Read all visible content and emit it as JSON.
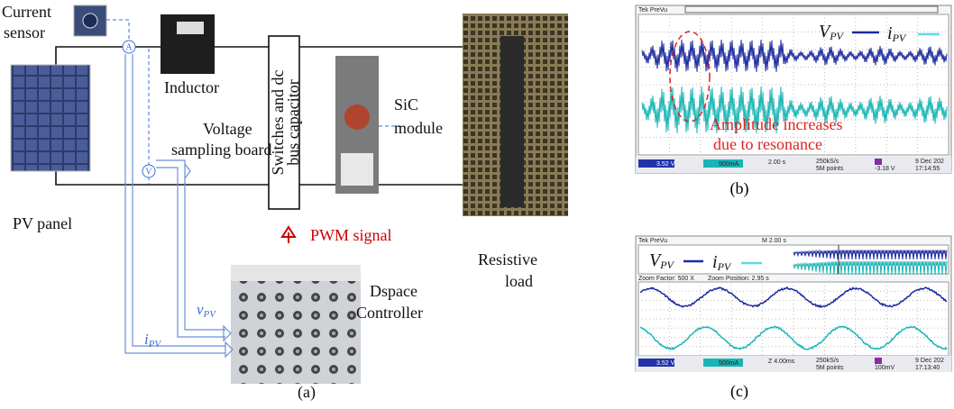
{
  "panel_a": {
    "current_sensor": [
      "Current",
      "sensor"
    ],
    "ammeter": "A",
    "voltmeter": "V",
    "inductor": "Inductor",
    "voltage_sampling_board": [
      "Voltage",
      "sampling board"
    ],
    "switches": [
      "Switches and dc",
      "bus capacitor"
    ],
    "sic_module": [
      "SiC",
      "module"
    ],
    "pv_panel": "PV panel",
    "pwm_signal": "PWM signal",
    "resistive_load": [
      "Resistive",
      "load"
    ],
    "dspace_controller": [
      "Dspace",
      "Controller"
    ],
    "v_pv": {
      "main": "v",
      "sub": "PV"
    },
    "i_pv": {
      "main": "i",
      "sub": "PV"
    },
    "caption": "(a)"
  },
  "panel_b": {
    "header": "Tek PreVu",
    "legend_v": {
      "main": "V",
      "sub": "PV"
    },
    "legend_i": {
      "main": "i",
      "sub": "PV"
    },
    "annotation": [
      "Amplitude increases",
      "due to resonance"
    ],
    "status": {
      "ch1": "3.52 V",
      "ch2": "500mA",
      "timebase": "2.00 s",
      "rate": "250kS/s",
      "points": "5M points",
      "trigger": "-3.18 V",
      "date": "9 Dec 202",
      "time": "17:14:55"
    },
    "caption": "(b)"
  },
  "panel_c": {
    "header": "Tek PreVu",
    "overview": "M 2.00 s",
    "legend_v": {
      "main": "V",
      "sub": "PV"
    },
    "legend_i": {
      "main": "i",
      "sub": "PV"
    },
    "zoom_factor": "Zoom Factor: 500 X",
    "zoom_position": "Zoom Position: 2.95 s",
    "status": {
      "ch1": "3.52 V",
      "ch2": "500mA",
      "timebase": "Z 4.00ms",
      "rate": "250kS/s",
      "points": "5M points",
      "trigger": "100mV",
      "date": "9 Dec 202",
      "time": "17:13:40"
    },
    "caption": "(c)"
  }
}
